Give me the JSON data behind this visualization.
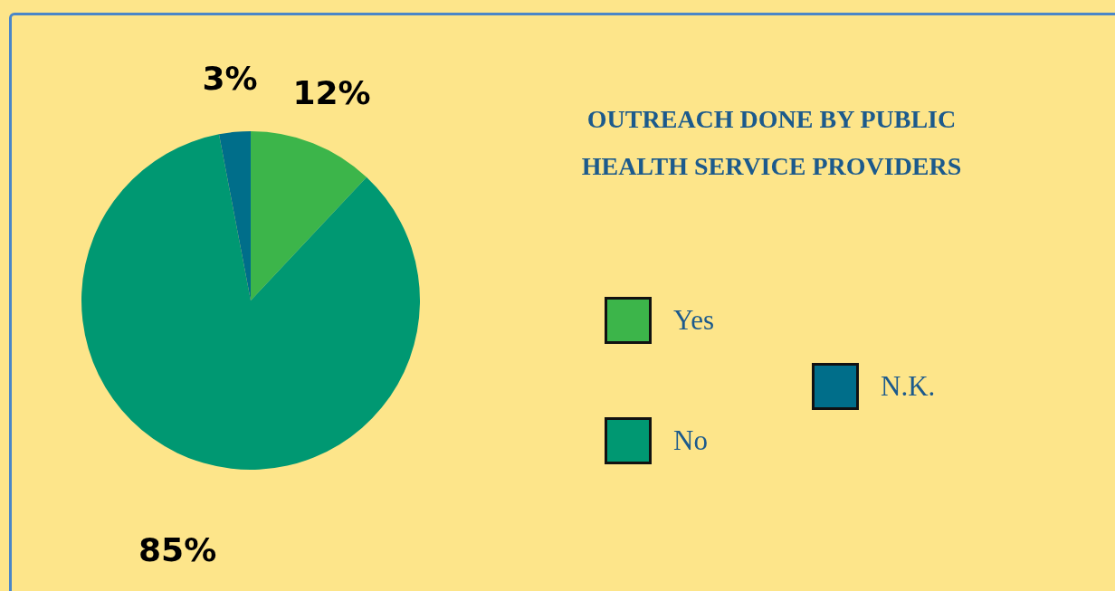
{
  "chart_data": {
    "type": "pie",
    "title": "OUTREACH DONE BY PUBLIC HEALTH SERVICE PROVIDERS",
    "categories": [
      "Yes",
      "No",
      "N.K."
    ],
    "values": [
      12,
      85,
      3
    ],
    "colors": [
      "#3cb54a",
      "#009872",
      "#006e8a"
    ],
    "value_labels": [
      "12%",
      "85%",
      "3%"
    ],
    "legend": "right"
  }
}
